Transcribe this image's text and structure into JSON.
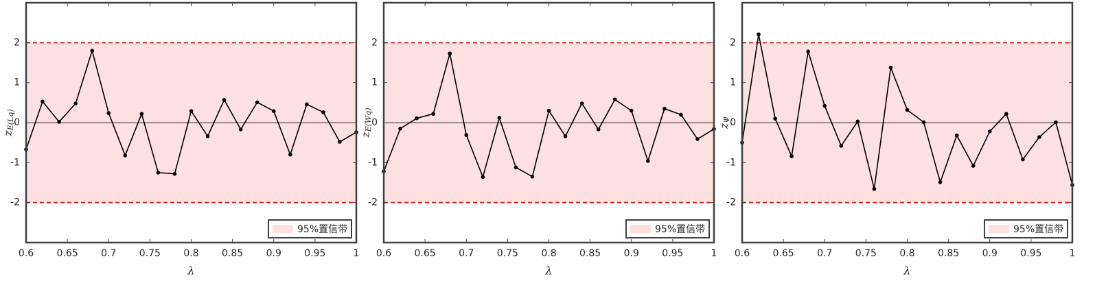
{
  "chart_data": [
    {
      "type": "line",
      "xlabel": "λ",
      "ylabel": {
        "main": "z",
        "sub": "E(Lq)"
      },
      "x": [
        0.6,
        0.62,
        0.64,
        0.66,
        0.68,
        0.7,
        0.72,
        0.74,
        0.76,
        0.78,
        0.8,
        0.82,
        0.84,
        0.86,
        0.88,
        0.9,
        0.92,
        0.94,
        0.96,
        0.98,
        1
      ],
      "values": [
        -0.67,
        0.53,
        0.02,
        0.48,
        1.8,
        0.24,
        -0.82,
        0.22,
        -1.25,
        -1.28,
        0.29,
        -0.34,
        0.57,
        -0.17,
        0.51,
        0.29,
        -0.8,
        0.46,
        0.26,
        -0.48,
        -0.24
      ],
      "color": "#000000",
      "band": [
        -2,
        2
      ],
      "band_color": "#fde0e0",
      "band_edge_color": "#d9262a",
      "band_label": "95%置信带",
      "zero_line": 0,
      "xlim": [
        0.6,
        1
      ],
      "xticks": [
        0.6,
        0.65,
        0.7,
        0.75,
        0.8,
        0.85,
        0.9,
        0.95,
        1
      ],
      "ylim": [
        -3,
        3
      ],
      "yticks": [
        -2,
        -1,
        0,
        1,
        2
      ]
    },
    {
      "type": "line",
      "xlabel": "λ",
      "ylabel": {
        "main": "z",
        "sub": "E(Wq)"
      },
      "x": [
        0.6,
        0.62,
        0.64,
        0.66,
        0.68,
        0.7,
        0.72,
        0.74,
        0.76,
        0.78,
        0.8,
        0.82,
        0.84,
        0.86,
        0.88,
        0.9,
        0.92,
        0.94,
        0.96,
        0.98,
        1
      ],
      "values": [
        -1.22,
        -0.15,
        0.11,
        0.22,
        1.73,
        -0.31,
        -1.36,
        0.12,
        -1.12,
        -1.35,
        0.3,
        -0.34,
        0.48,
        -0.17,
        0.58,
        0.3,
        -0.96,
        0.35,
        0.2,
        -0.41,
        -0.16
      ],
      "color": "#000000",
      "band": [
        -2,
        2
      ],
      "band_color": "#fde0e0",
      "band_edge_color": "#d9262a",
      "band_label": "95%置信带",
      "zero_line": 0,
      "xlim": [
        0.6,
        1
      ],
      "xticks": [
        0.6,
        0.65,
        0.7,
        0.75,
        0.8,
        0.85,
        0.9,
        0.95,
        1
      ],
      "ylim": [
        -3,
        3
      ],
      "yticks": [
        -2,
        -1,
        0,
        1,
        2
      ]
    },
    {
      "type": "line",
      "xlabel": "λ",
      "ylabel": {
        "main": "z",
        "sub": "Ψ"
      },
      "x": [
        0.6,
        0.62,
        0.64,
        0.66,
        0.68,
        0.7,
        0.72,
        0.74,
        0.76,
        0.78,
        0.8,
        0.82,
        0.84,
        0.86,
        0.88,
        0.9,
        0.92,
        0.94,
        0.96,
        0.98,
        1
      ],
      "values": [
        -0.5,
        2.21,
        0.1,
        -0.84,
        1.78,
        0.42,
        -0.58,
        0.03,
        -1.66,
        1.38,
        0.32,
        0.01,
        -1.49,
        -0.32,
        -1.08,
        -0.22,
        0.22,
        -0.92,
        -0.36,
        0.01,
        -1.56
      ],
      "color": "#000000",
      "band": [
        -2,
        2
      ],
      "band_color": "#fde0e0",
      "band_edge_color": "#d9262a",
      "band_label": "95%置信带",
      "zero_line": 0,
      "xlim": [
        0.6,
        1
      ],
      "xticks": [
        0.6,
        0.65,
        0.7,
        0.75,
        0.8,
        0.85,
        0.9,
        0.95,
        1
      ],
      "ylim": [
        -3,
        3
      ],
      "yticks": [
        -2,
        -1,
        0,
        1,
        2
      ]
    }
  ]
}
